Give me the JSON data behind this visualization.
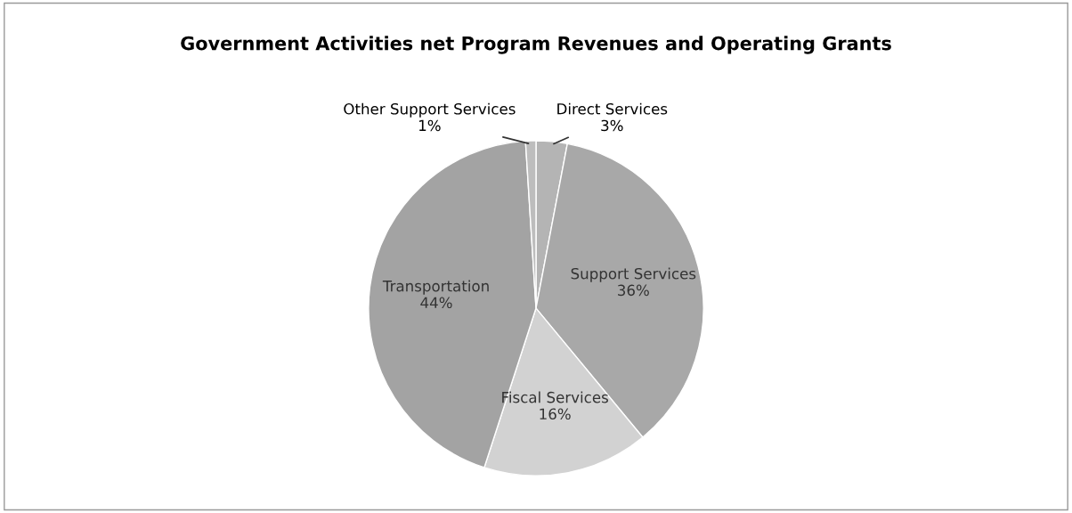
{
  "chart_data": {
    "type": "pie",
    "title": "Government Activities net Program Revenues and Operating Grants",
    "categories": [
      "Direct Services",
      "Support Services",
      "Fiscal Services",
      "Transportation",
      "Other Support Services"
    ],
    "values": [
      3,
      36,
      16,
      44,
      1
    ],
    "value_labels": [
      "3%",
      "36%",
      "16%",
      "44%",
      "1%"
    ],
    "colors": [
      "#b4b4b4",
      "#a8a8a8",
      "#d2d2d2",
      "#a3a3a3",
      "#bdbdbd"
    ],
    "legend": false
  }
}
